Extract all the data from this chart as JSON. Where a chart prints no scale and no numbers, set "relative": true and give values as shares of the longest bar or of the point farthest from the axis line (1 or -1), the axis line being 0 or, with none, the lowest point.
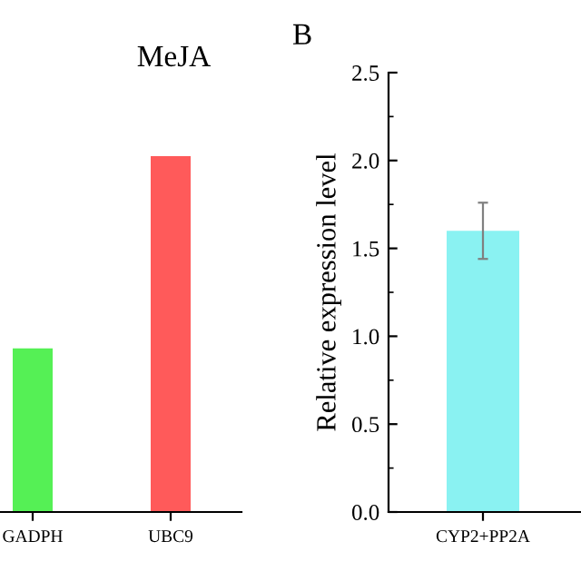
{
  "chart_data": [
    {
      "type": "bar",
      "title": "MeJA",
      "categories": [
        "GADPH",
        "UBC9"
      ],
      "relative": true,
      "tick_labels": "x",
      "grid": false,
      "legend": false,
      "series": [
        {
          "colors": [
            "#55f055",
            "#ff5a5a"
          ],
          "values": [
            0.46,
            1
          ]
        }
      ]
    },
    {
      "type": "bar",
      "ylabel": "Relative expression level",
      "annotations": [
        "B"
      ],
      "categories": [
        "CYP2+PP2A"
      ],
      "ylim": [
        0,
        2.5
      ],
      "yticks": [
        {
          "value": 0,
          "label": "0.0"
        },
        0.5,
        {
          "value": 1,
          "label": "1.0"
        },
        1.5,
        {
          "value": 2,
          "label": "2.0"
        },
        2.5
      ],
      "grid": false,
      "legend": false,
      "series": [
        {
          "colors": [
            "#8af2f2"
          ],
          "values": [
            1.6
          ],
          "errors": [
            0.16
          ]
        }
      ]
    }
  ]
}
